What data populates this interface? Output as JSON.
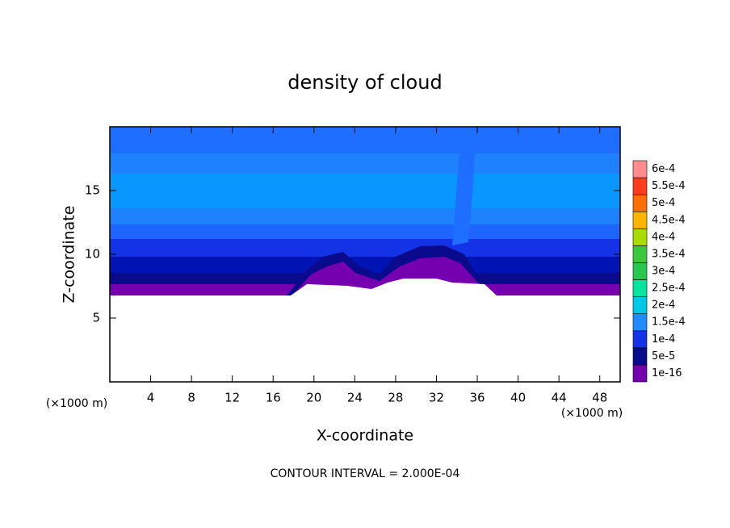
{
  "chart_data": {
    "type": "contour",
    "title": "density of cloud",
    "xlabel": "X-coordinate",
    "ylabel": "Z-coordinate",
    "x_unit_left": "(×1000 m)",
    "x_unit_right": "(×1000 m)",
    "footnote": "CONTOUR INTERVAL = 2.000E-04",
    "xlim": [
      0,
      50
    ],
    "ylim": [
      0,
      20
    ],
    "xticks": [
      4,
      8,
      12,
      16,
      20,
      24,
      28,
      32,
      36,
      40,
      44,
      48
    ],
    "yticks": [
      5,
      10,
      15
    ],
    "colorbar": [
      {
        "value": 1e-16,
        "label": "1e-16",
        "color": "#7400b0"
      },
      {
        "value": 5e-05,
        "label": "5e-5",
        "color": "#0a0a8c"
      },
      {
        "value": 0.0001,
        "label": "1e-4",
        "color": "#1432e6"
      },
      {
        "value": 0.00015,
        "label": "1.5e-4",
        "color": "#1e8cff"
      },
      {
        "value": 0.0002,
        "label": "2e-4",
        "color": "#00c8e6"
      },
      {
        "value": 0.00025,
        "label": "2.5e-4",
        "color": "#00e6a0"
      },
      {
        "value": 0.0003,
        "label": "3e-4",
        "color": "#28c850"
      },
      {
        "value": 0.00035,
        "label": "3.5e-4",
        "color": "#3cc83c"
      },
      {
        "value": 0.0004,
        "label": "4e-4",
        "color": "#aadc00"
      },
      {
        "value": 0.00045,
        "label": "4.5e-4",
        "color": "#ffb400"
      },
      {
        "value": 0.0005,
        "label": "5e-4",
        "color": "#ff6e00"
      },
      {
        "value": 0.00055,
        "label": "5.5e-4",
        "color": "#ff3c1e"
      },
      {
        "value": 0.0006,
        "label": "6e-4",
        "color": "#ff8c8c"
      }
    ]
  }
}
